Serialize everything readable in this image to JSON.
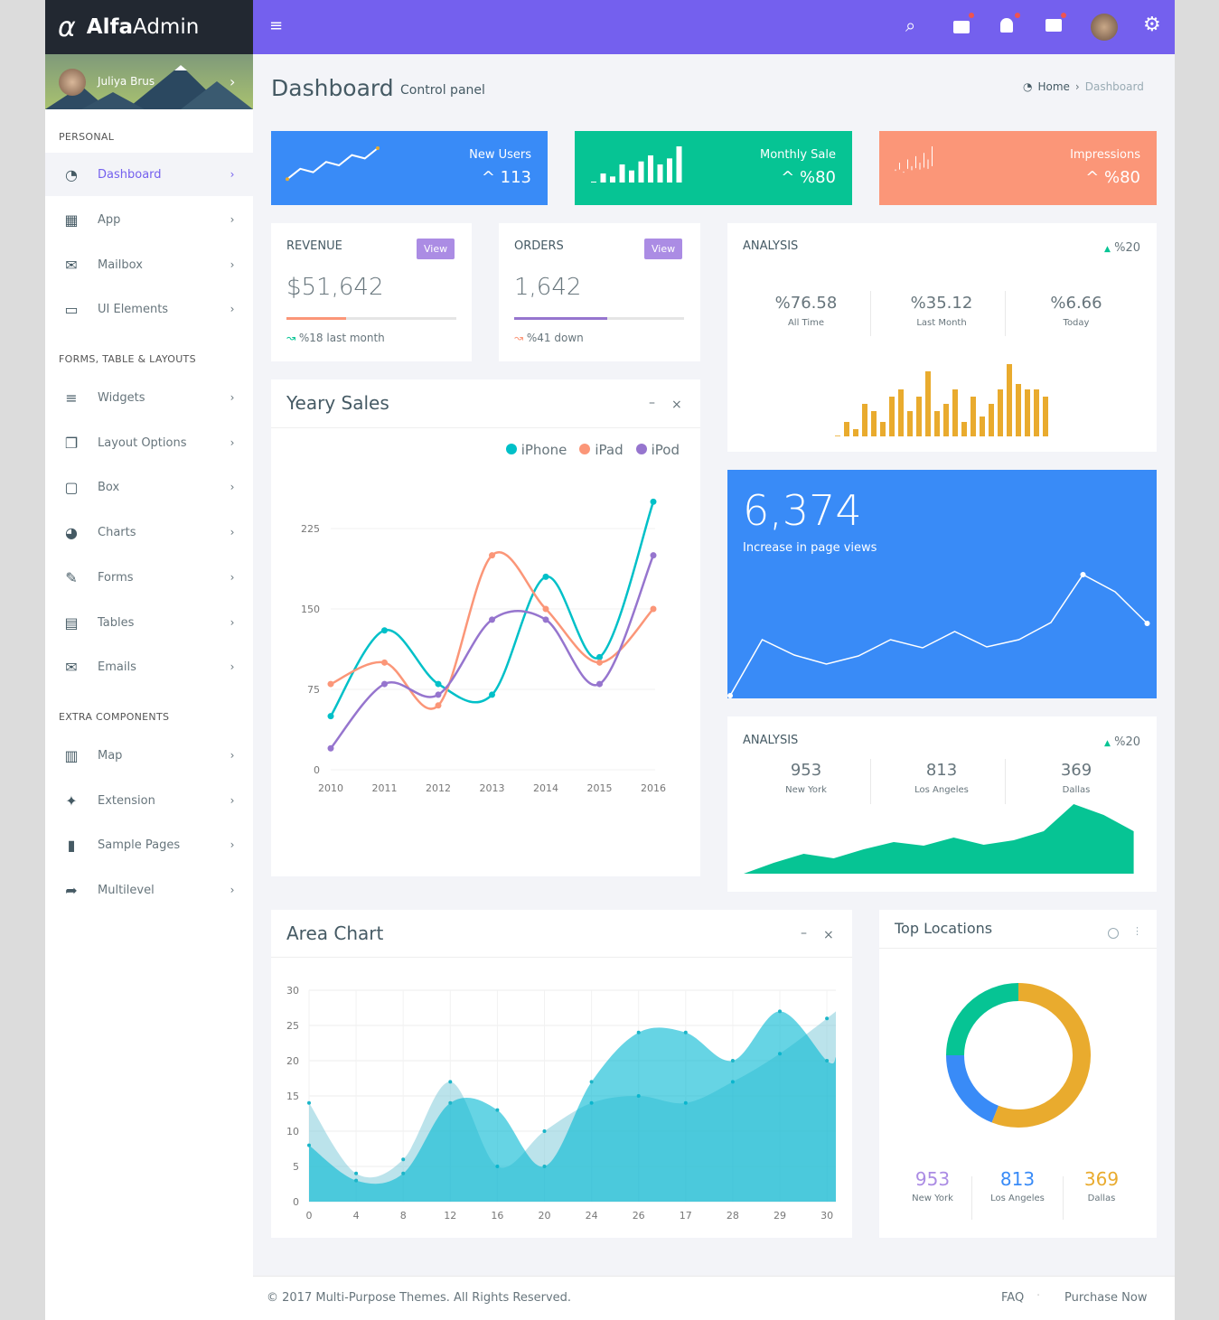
{
  "brand": {
    "name_bold": "Alfa",
    "name_light": "Admin"
  },
  "user": {
    "name": "Juliya Brus"
  },
  "sidebar": {
    "sections": [
      "PERSONAL",
      "FORMS, TABLE & LAYOUTS",
      "EXTRA COMPONENTS"
    ],
    "items": [
      {
        "label": "Dashboard",
        "icon": "dashboard-icon",
        "glyph": "◔"
      },
      {
        "label": "App",
        "icon": "grid-icon",
        "glyph": "▦"
      },
      {
        "label": "Mailbox",
        "icon": "envelope-icon",
        "glyph": "✉"
      },
      {
        "label": "UI Elements",
        "icon": "laptop-icon",
        "glyph": "▭"
      },
      {
        "label": "Widgets",
        "icon": "bars-icon",
        "glyph": "≡"
      },
      {
        "label": "Layout Options",
        "icon": "copy-icon",
        "glyph": "❐"
      },
      {
        "label": "Box",
        "icon": "square-icon",
        "glyph": "▢"
      },
      {
        "label": "Charts",
        "icon": "pie-chart-icon",
        "glyph": "◕"
      },
      {
        "label": "Forms",
        "icon": "edit-icon",
        "glyph": "✎"
      },
      {
        "label": "Tables",
        "icon": "table-icon",
        "glyph": "▤"
      },
      {
        "label": "Emails",
        "icon": "envelope-open-icon",
        "glyph": "✉"
      },
      {
        "label": "Map",
        "icon": "map-icon",
        "glyph": "▥"
      },
      {
        "label": "Extension",
        "icon": "plug-icon",
        "glyph": "✦"
      },
      {
        "label": "Sample Pages",
        "icon": "file-icon",
        "glyph": "▮"
      },
      {
        "label": "Multilevel",
        "icon": "share-icon",
        "glyph": "➦"
      }
    ],
    "chevron": "›"
  },
  "header": {
    "menu": "≡",
    "search": "⌕",
    "gear": "⚙"
  },
  "page": {
    "title": "Dashboard",
    "subtitle": "Control panel",
    "breadcrumb": [
      "Home",
      "Dashboard"
    ]
  },
  "colors": {
    "purple": "#7460ee",
    "blue": "#398bf7",
    "green": "#06c494",
    "salmon": "#fb9678",
    "orange": "#e9ab2e",
    "lilac": "#ab8ce4",
    "iphone": "#00c0c8",
    "ipad": "#fb9678",
    "ipod": "#9675ce"
  },
  "stats": [
    {
      "title": "New Users",
      "value": "^ 113",
      "spark": [
        1,
        4,
        3,
        6,
        5,
        8,
        7,
        10
      ]
    },
    {
      "title": "Monthly Sale",
      "value": "^ %80",
      "spark": [
        0,
        3,
        2,
        6,
        4,
        7,
        9,
        6,
        8,
        12
      ]
    },
    {
      "title": "Impressions",
      "value": "^ %80",
      "spark": [
        4,
        6,
        3,
        7,
        5,
        8,
        6,
        9,
        7,
        11
      ]
    }
  ],
  "revenue": {
    "title": "REVENUE",
    "view": "View",
    "value": "$51,642",
    "progress": 35,
    "note": "%18 last month"
  },
  "orders": {
    "title": "ORDERS",
    "view": "View",
    "value": "1,642",
    "progress": 55,
    "note": "%41 down"
  },
  "analysis1": {
    "title": "ANALYSIS",
    "change": "%20",
    "cols": [
      {
        "v": "%76.58",
        "l": "All Time"
      },
      {
        "v": "%35.12",
        "l": "Last Month"
      },
      {
        "v": "%6.66",
        "l": "Today"
      }
    ],
    "bars": [
      0.2,
      4,
      2,
      9,
      7,
      4,
      11,
      13,
      7,
      11,
      18,
      7,
      9,
      13,
      4,
      11,
      5.5,
      9,
      13,
      20,
      14.5,
      13,
      13,
      11
    ]
  },
  "yeary": {
    "title": "Yeary Sales",
    "minimize": "–",
    "close": "×"
  },
  "chart_data": [
    {
      "type": "line",
      "title": "Yeary Sales",
      "categories": [
        "2010",
        "2011",
        "2012",
        "2013",
        "2014",
        "2015",
        "2016"
      ],
      "ylim": [
        0,
        300
      ],
      "yticks": [
        "0",
        "75",
        "150",
        "225",
        "300"
      ],
      "legend": "top-right",
      "series": [
        {
          "name": "iPhone",
          "values": [
            50,
            130,
            80,
            70,
            180,
            105,
            250
          ]
        },
        {
          "name": "iPad",
          "values": [
            80,
            100,
            60,
            200,
            150,
            100,
            150
          ]
        },
        {
          "name": "iPod",
          "values": [
            20,
            80,
            70,
            140,
            140,
            80,
            200
          ]
        }
      ]
    },
    {
      "type": "area",
      "title": "Area Chart",
      "categories": [
        "0",
        "4",
        "8",
        "12",
        "16",
        "20",
        "24",
        "26",
        "17",
        "28",
        "29",
        "30"
      ],
      "ylim": [
        0,
        30
      ],
      "yticks": [
        "0",
        "5",
        "10",
        "15",
        "20",
        "25",
        "30"
      ],
      "grid": true,
      "series": [
        {
          "values": [
            14,
            4,
            6,
            17,
            5,
            10,
            14,
            15,
            14,
            17,
            21,
            26
          ]
        },
        {
          "values": [
            8,
            3,
            4,
            14,
            13,
            5,
            17,
            24,
            24,
            20,
            27,
            20
          ]
        }
      ]
    }
  ],
  "pageviews": {
    "value": "6,374",
    "label": "Increase in page views",
    "line": [
      0,
      62,
      45,
      35,
      44,
      62,
      53,
      71,
      54,
      62,
      81,
      134,
      115,
      80
    ]
  },
  "analysis2": {
    "title": "ANALYSIS",
    "change": "%20",
    "cols": [
      {
        "v": "953",
        "l": "New York"
      },
      {
        "v": "813",
        "l": "Los Angeles"
      },
      {
        "v": "369",
        "l": "Dallas"
      }
    ],
    "area": [
      0,
      12,
      22,
      17,
      27,
      35,
      31,
      40,
      32,
      37,
      47,
      77,
      65,
      47
    ]
  },
  "area_card": {
    "title": "Area Chart",
    "minimize": "–",
    "close": "×"
  },
  "locations": {
    "title": "Top Locations",
    "donut": [
      {
        "color": "#e9ab2e",
        "share": 56
      },
      {
        "color": "#398bf7",
        "share": 19
      },
      {
        "color": "#06c494",
        "share": 25
      }
    ],
    "cols": [
      {
        "v": "953",
        "l": "New York"
      },
      {
        "v": "813",
        "l": "Los Angeles"
      },
      {
        "v": "369",
        "l": "Dallas"
      }
    ]
  },
  "footer": {
    "copy": "© 2017 Multi-Purpose Themes. All Rights Reserved.",
    "links": [
      "FAQ",
      "Purchase Now"
    ]
  }
}
